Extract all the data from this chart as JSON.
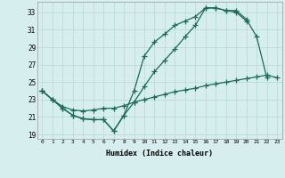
{
  "title": "",
  "xlabel": "Humidex (Indice chaleur)",
  "bg_color": "#d6eeee",
  "grid_color": "#b8d8d8",
  "line_color": "#1a6b5a",
  "xlim": [
    -0.5,
    23.5
  ],
  "ylim": [
    18.5,
    34.2
  ],
  "yticks": [
    19,
    21,
    23,
    25,
    27,
    29,
    31,
    33
  ],
  "xticks": [
    0,
    1,
    2,
    3,
    4,
    5,
    6,
    7,
    8,
    9,
    10,
    11,
    12,
    13,
    14,
    15,
    16,
    17,
    18,
    19,
    20,
    21,
    22,
    23
  ],
  "line1_x": [
    0,
    1,
    2,
    3,
    4,
    5,
    6,
    7,
    8,
    9,
    10,
    11,
    12,
    13,
    14,
    15,
    16,
    17,
    18,
    19,
    20,
    21,
    22
  ],
  "line1_y": [
    24.0,
    23.0,
    22.0,
    21.2,
    20.8,
    20.7,
    20.7,
    19.4,
    21.2,
    24.0,
    28.0,
    29.6,
    30.5,
    31.5,
    32.0,
    32.5,
    33.5,
    33.5,
    33.2,
    33.2,
    32.2,
    30.2,
    25.5
  ],
  "line2_x": [
    0,
    1,
    2,
    3,
    4,
    5,
    6,
    7,
    8,
    9,
    10,
    11,
    12,
    13,
    14,
    15,
    16,
    17,
    18,
    19,
    20
  ],
  "line2_y": [
    24.0,
    23.0,
    22.0,
    21.2,
    20.8,
    20.7,
    20.7,
    19.4,
    21.2,
    22.7,
    24.5,
    26.2,
    27.5,
    28.8,
    30.2,
    31.5,
    33.5,
    33.5,
    33.2,
    33.0,
    32.0
  ],
  "line3_x": [
    0,
    1,
    2,
    3,
    4,
    5,
    6,
    7,
    8,
    9,
    10,
    11,
    12,
    13,
    14,
    15,
    16,
    17,
    18,
    19,
    20,
    21,
    22,
    23
  ],
  "line3_y": [
    24.0,
    23.0,
    22.2,
    21.8,
    21.7,
    21.8,
    22.0,
    22.0,
    22.3,
    22.7,
    23.0,
    23.3,
    23.6,
    23.9,
    24.1,
    24.3,
    24.6,
    24.8,
    25.0,
    25.2,
    25.4,
    25.6,
    25.8,
    25.5
  ]
}
